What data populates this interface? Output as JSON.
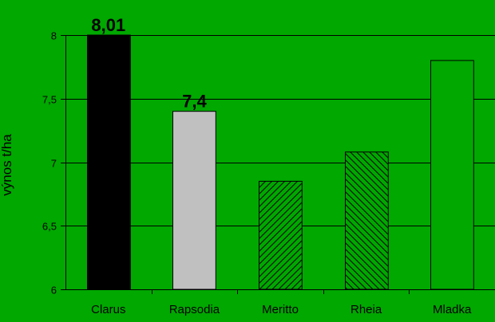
{
  "chart_data": {
    "type": "bar",
    "title": "",
    "xlabel": "",
    "ylabel": "výnos t/ha",
    "ylim": [
      6,
      8
    ],
    "yticks": [
      6,
      6.5,
      7,
      7.5,
      8
    ],
    "ytick_labels": [
      "6",
      "6,5",
      "7",
      "7,5",
      "8"
    ],
    "grid": true,
    "categories": [
      "Clarus",
      "Rapsodia",
      "Meritto",
      "Rheia",
      "Mladka"
    ],
    "values": [
      8.01,
      7.4,
      6.85,
      7.08,
      7.8
    ],
    "data_labels": [
      "8,01",
      "7,4",
      "",
      "",
      ""
    ],
    "bar_styles": [
      {
        "fill": "#000000",
        "pattern": "solid"
      },
      {
        "fill": "#c0c0c0",
        "pattern": "solid"
      },
      {
        "fill": "#00a800",
        "pattern": "diagonal-forward"
      },
      {
        "fill": "#00a800",
        "pattern": "diagonal-backward"
      },
      {
        "fill": "#00a800",
        "pattern": "solid"
      }
    ],
    "colors": {
      "background": "#00a800",
      "axis": "#000000",
      "grid": "#000000",
      "text": "#000000"
    }
  }
}
